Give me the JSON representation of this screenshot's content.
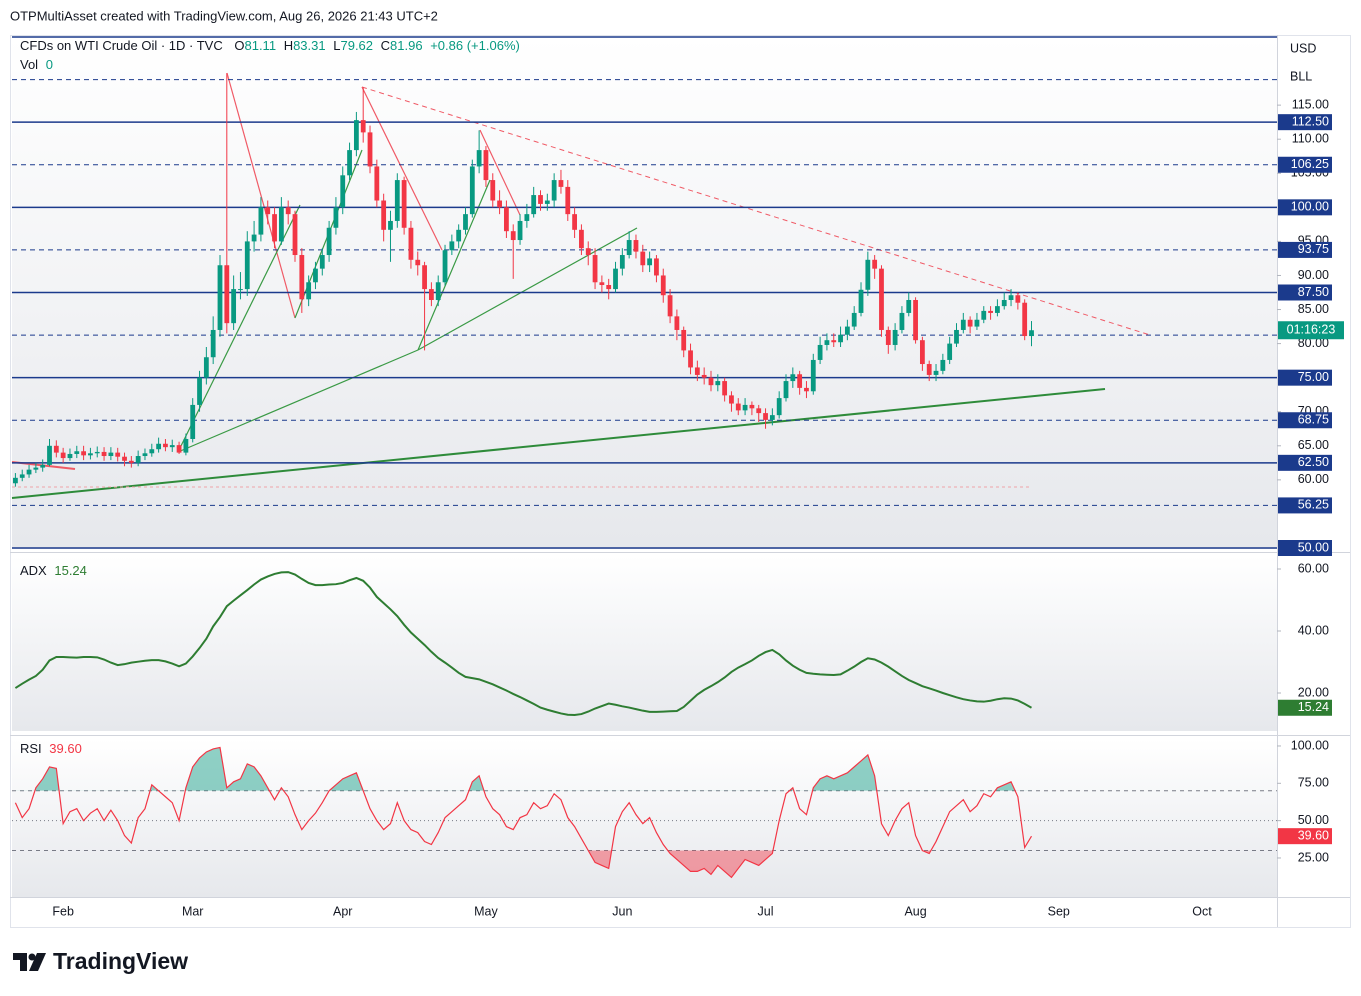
{
  "header": {
    "credit": "OTPMultiAsset created with TradingView.com, Aug 26, 2026 21:43 UTC+2"
  },
  "legend": {
    "symbol": "CFDs on WTI Crude Oil · 1D · TVC",
    "ohlc": [
      {
        "key": "O",
        "value": "81.11"
      },
      {
        "key": "H",
        "value": "83.31"
      },
      {
        "key": "L",
        "value": "79.62"
      },
      {
        "key": "C",
        "value": "81.96"
      }
    ],
    "change": "+0.86 (+1.06%)",
    "volume": {
      "key": "Vol",
      "value": "0"
    }
  },
  "scale_labels": [
    "USD",
    "BLL"
  ],
  "footer": {
    "brand": "TradingView"
  },
  "chart_data": [
    {
      "type": "candlestick",
      "up_color": "#089981",
      "down_color": "#f23645",
      "xlim": [
        -0.5,
        185
      ],
      "xticks": [
        {
          "value": 7,
          "label": "Feb"
        },
        {
          "value": 26,
          "label": "Mar"
        },
        {
          "value": 48,
          "label": "Apr"
        },
        {
          "value": 69,
          "label": "May"
        },
        {
          "value": 89,
          "label": "Jun"
        },
        {
          "value": 110,
          "label": "Jul"
        },
        {
          "value": 132,
          "label": "Aug"
        },
        {
          "value": 153,
          "label": "Sep"
        },
        {
          "value": 174,
          "label": "Oct"
        }
      ],
      "ylim": [
        50,
        125
      ],
      "yticks": [
        {
          "value": 115,
          "label": "115.00"
        },
        {
          "value": 110,
          "label": "110.00"
        },
        {
          "value": 105,
          "label": "105.00"
        },
        {
          "value": 95,
          "label": "95.00"
        },
        {
          "value": 90,
          "label": "90.00"
        },
        {
          "value": 85,
          "label": "85.00"
        },
        {
          "value": 80,
          "label": "80.00"
        },
        {
          "value": 70,
          "label": "70.00"
        },
        {
          "value": 65,
          "label": "65.00"
        },
        {
          "value": 60,
          "label": "60.00"
        }
      ],
      "level_color": "#1b3a8c",
      "levels": [
        {
          "value": 125,
          "style": "solid"
        },
        {
          "value": 118.75,
          "style": "dashed"
        },
        {
          "value": 112.5,
          "style": "solid",
          "label": "112.50"
        },
        {
          "value": 106.25,
          "style": "dashed",
          "label": "106.25"
        },
        {
          "value": 100,
          "style": "solid",
          "label": "100.00"
        },
        {
          "value": 93.75,
          "style": "dashed",
          "label": "93.75"
        },
        {
          "value": 87.5,
          "style": "solid",
          "label": "87.50"
        },
        {
          "value": 81.25,
          "style": "dashed"
        },
        {
          "value": 75,
          "style": "solid",
          "label": "75.00"
        },
        {
          "value": 68.75,
          "style": "dashed",
          "label": "68.75"
        },
        {
          "value": 62.5,
          "style": "solid",
          "label": "62.50"
        },
        {
          "value": 56.25,
          "style": "dashed",
          "label": "56.25"
        },
        {
          "value": 50,
          "style": "solid",
          "label": "50.00"
        }
      ],
      "countdown": "01:16:23",
      "open": [
        59.5,
        60.3,
        60.8,
        61.5,
        61.8,
        62.2,
        65,
        64,
        63.2,
        63.8,
        64.2,
        63.6,
        63.9,
        64.1,
        63.5,
        64,
        63.4,
        62.8,
        62.5,
        63.5,
        63.9,
        64.5,
        65.3,
        64.8,
        65.1,
        64,
        66,
        71,
        75,
        78,
        82,
        91.5,
        83,
        88,
        88,
        95,
        96,
        100,
        99,
        95,
        100,
        99,
        93,
        86.5,
        89,
        91,
        93,
        97,
        100,
        104.7,
        108.4,
        112.8,
        111,
        106,
        101,
        96.7,
        98,
        104,
        97,
        92.3,
        91.5,
        88,
        86.4,
        89,
        93.7,
        95,
        96.7,
        99,
        106,
        108.4,
        104,
        101,
        100,
        96.5,
        95.2,
        98,
        99,
        101.8,
        100.5,
        101,
        104,
        103,
        99,
        96.7,
        94,
        93,
        89,
        88.6,
        88,
        91,
        93,
        95.2,
        93.5,
        91.5,
        92.5,
        90,
        87.1,
        84,
        82,
        79,
        76.5,
        75.4,
        75,
        73.9,
        74.5,
        72.4,
        71.2,
        70.2,
        71,
        70.5,
        69.8,
        68.8,
        69.5,
        72,
        74.5,
        75.5,
        73.5,
        73,
        77.6,
        79.8,
        80.5,
        80.2,
        81.3,
        82.5,
        84.5,
        87.9,
        92.3,
        91,
        82,
        79.8,
        82,
        84.5,
        86.4,
        80.5,
        77,
        75.4,
        76,
        77.6,
        80,
        82,
        83.5,
        82.5,
        83.5,
        84.8,
        84.5,
        85.5,
        86.4,
        87.1,
        86,
        81.11
      ],
      "high": [
        61,
        61.5,
        62.2,
        62.5,
        63,
        66,
        65.8,
        64.7,
        64.6,
        65,
        65,
        64.7,
        64.9,
        64.8,
        64.8,
        64.7,
        64,
        63.5,
        64.3,
        64.6,
        65.3,
        66.2,
        66,
        65.9,
        65.6,
        66.8,
        72,
        76,
        79.5,
        84,
        93,
        119.7,
        90,
        90.5,
        96.5,
        98,
        101.5,
        101,
        100,
        101.5,
        101,
        99.5,
        94,
        90,
        92,
        94,
        98,
        101.5,
        106,
        109.5,
        114,
        117.6,
        112,
        107,
        102,
        99.5,
        105,
        104.5,
        98,
        93.5,
        92,
        89,
        90,
        94.5,
        96,
        97.5,
        100,
        107,
        111.3,
        109,
        105,
        102.5,
        101,
        97.5,
        99,
        100.5,
        103,
        102.5,
        102,
        105,
        105.5,
        104,
        100,
        97.5,
        95,
        94,
        90,
        89.5,
        92,
        94,
        96.5,
        96,
        94.5,
        93.5,
        93,
        91,
        88,
        85,
        82.5,
        80,
        77.5,
        76.5,
        76,
        75.5,
        75,
        73,
        72,
        72,
        71.5,
        71,
        70.5,
        70.5,
        73,
        75.5,
        76.5,
        76,
        74.5,
        78.5,
        81,
        81.5,
        81.5,
        82.5,
        83.5,
        85.5,
        89,
        93.5,
        93,
        91.5,
        82.5,
        83,
        85.5,
        87.5,
        86.8,
        81,
        77.5,
        77,
        78.5,
        81,
        83,
        84.5,
        84,
        84.5,
        85.5,
        85.5,
        86.5,
        87.5,
        88,
        87.5,
        86.5,
        83.31
      ],
      "low": [
        59,
        59.8,
        60.3,
        61,
        61.2,
        62,
        63.3,
        62.5,
        62.8,
        63.2,
        62.9,
        63,
        63.3,
        62.8,
        62.9,
        62.7,
        62,
        61.8,
        62,
        62.9,
        63.4,
        64,
        64.2,
        64.1,
        63.8,
        63.6,
        65.5,
        70,
        74,
        77,
        81,
        81.5,
        82,
        86.5,
        87,
        93.5,
        95,
        97.5,
        94,
        94.5,
        97.5,
        92,
        84.5,
        85.5,
        88,
        90,
        92,
        96,
        99,
        104,
        107.5,
        109.5,
        105,
        100,
        95,
        92,
        97,
        96,
        91,
        90,
        79,
        85.5,
        85.5,
        88.5,
        93,
        94,
        96,
        98.5,
        105,
        103,
        100,
        99,
        95.5,
        89.5,
        94.5,
        97,
        98.5,
        99.5,
        99.5,
        100,
        102,
        98,
        95.5,
        93,
        91.5,
        88,
        87.5,
        86.5,
        87.5,
        90,
        92.5,
        92.5,
        90.5,
        90.5,
        89,
        86,
        83,
        80.5,
        78,
        75.5,
        74.5,
        74,
        73,
        73,
        71.5,
        70,
        69.5,
        69.5,
        69.5,
        68.5,
        67.5,
        68,
        69,
        71.5,
        73.5,
        72.5,
        72,
        72.5,
        77,
        79,
        79.5,
        79.5,
        80.5,
        82,
        84,
        87,
        89.5,
        81,
        78.5,
        79,
        81.5,
        84,
        80,
        76,
        74.5,
        74.5,
        75.5,
        77,
        79.5,
        81.5,
        81.5,
        82,
        83,
        83.5,
        84,
        85,
        85.5,
        85,
        80.5,
        79.62
      ],
      "close": [
        60.3,
        60.8,
        61.5,
        61.8,
        62.2,
        65,
        64,
        63.2,
        63.8,
        64.2,
        63.6,
        63.9,
        64.1,
        63.5,
        64,
        63.4,
        62.8,
        62.5,
        63.5,
        63.9,
        64.5,
        65.3,
        64.8,
        65.1,
        64,
        66,
        71,
        75,
        78,
        82,
        91.5,
        83,
        88,
        88,
        95,
        96,
        100,
        99,
        95,
        100,
        99,
        93,
        86.5,
        89,
        91,
        93,
        97,
        100,
        104.7,
        108.4,
        112.8,
        111,
        106,
        101,
        96.7,
        98,
        104,
        97,
        92.3,
        91.5,
        88,
        86.4,
        89,
        93.7,
        95,
        96.7,
        99,
        106,
        108.4,
        104,
        101,
        100,
        96.5,
        95.2,
        98,
        99,
        101.8,
        100.5,
        101,
        104,
        103,
        99,
        96.7,
        94,
        93,
        89,
        88.6,
        88,
        91,
        93,
        95.2,
        93.5,
        91.5,
        92.5,
        90,
        87.1,
        84,
        82,
        79,
        76.5,
        75.4,
        75,
        73.9,
        74.5,
        72.4,
        71.2,
        70.2,
        71,
        70.5,
        69.8,
        68.8,
        69.5,
        72,
        74.5,
        75.5,
        73.5,
        73,
        77.6,
        79.8,
        80.5,
        80.2,
        81.3,
        82.5,
        84.5,
        87.9,
        92.3,
        91,
        82,
        79.8,
        82,
        84.5,
        86.4,
        80.5,
        77,
        75.4,
        76,
        77.6,
        80,
        82,
        83.5,
        82.5,
        83.5,
        84.8,
        84.5,
        85.5,
        86.4,
        87.1,
        86,
        81.11,
        81.96
      ]
    },
    {
      "type": "line",
      "xlim": [
        -0.5,
        185
      ],
      "ylim": [
        8,
        64
      ],
      "yticks": [
        {
          "value": 60,
          "label": "60.00"
        },
        {
          "value": 40,
          "label": "40.00"
        },
        {
          "value": 20,
          "label": "20.00"
        }
      ],
      "series": [
        {
          "name": "ADX",
          "color": "#2e7d32",
          "values": [
            21.6,
            23,
            24.3,
            25.5,
            27.5,
            30.5,
            31.6,
            31.6,
            31.5,
            31.4,
            31.6,
            31.6,
            31.5,
            30.8,
            29.8,
            29,
            29.3,
            29.8,
            30.1,
            30.4,
            30.6,
            30.6,
            30.2,
            29.5,
            28.6,
            29.5,
            31.8,
            34.5,
            37.5,
            41.5,
            44.5,
            48,
            49.8,
            51.5,
            53.2,
            55,
            56.6,
            57.6,
            58.4,
            58.9,
            59,
            58.2,
            56.8,
            55.5,
            54.8,
            54.8,
            55,
            55.1,
            55.5,
            56.4,
            57.1,
            56.2,
            54,
            51,
            49,
            47,
            44.8,
            42,
            39.5,
            37.5,
            35.5,
            33.3,
            31.3,
            29.8,
            28.2,
            26.5,
            25.2,
            24.8,
            24.4,
            23.6,
            22.8,
            21.8,
            20.8,
            19.7,
            18.7,
            17.6,
            16.5,
            15.3,
            14.6,
            14,
            13.4,
            13,
            12.9,
            13.2,
            14,
            15,
            15.8,
            16.6,
            16.2,
            15.7,
            15.3,
            14.8,
            14.3,
            13.9,
            13.9,
            14,
            14.1,
            14.2,
            15.5,
            17.5,
            19.5,
            21,
            22.2,
            23.5,
            25,
            26.8,
            28.2,
            29.3,
            30.5,
            32,
            33.2,
            33.9,
            32.5,
            30.5,
            28.8,
            27.5,
            26.5,
            26.2,
            26,
            25.9,
            25.8,
            26,
            27.2,
            28.5,
            30,
            31.2,
            30.8,
            29.8,
            28.5,
            27,
            25.5,
            24.2,
            23.2,
            22.2,
            21.5,
            20.8,
            20,
            19.3,
            18.6,
            18,
            17.6,
            17.3,
            17.2,
            17.5,
            18,
            18.3,
            18.2,
            17.6,
            16.5,
            15.24
          ]
        }
      ]
    },
    {
      "type": "line",
      "xlim": [
        -0.5,
        185
      ],
      "ylim": [
        -1,
        104
      ],
      "yticks": [
        {
          "value": 100,
          "label": "100.00"
        },
        {
          "value": 75,
          "label": "75.00"
        },
        {
          "value": 50,
          "label": "50.00"
        },
        {
          "value": 25,
          "label": "25.00"
        }
      ],
      "bands": [
        70,
        50,
        30
      ],
      "overbought_color": "rgba(8,153,129,0.45)",
      "oversold_color": "rgba(242,54,69,0.45)",
      "last_label": "39.60",
      "series": [
        {
          "name": "RSI",
          "color": "#f23645",
          "values": [
            62,
            52,
            58,
            72,
            78,
            86,
            85,
            48,
            56,
            58,
            50,
            55,
            58,
            50,
            57,
            50,
            40,
            35,
            52,
            58,
            74,
            70,
            66,
            62,
            50,
            72,
            86,
            92,
            96,
            98,
            99,
            72,
            76,
            78,
            88,
            86,
            80,
            72,
            64,
            72,
            66,
            54,
            44,
            50,
            55,
            62,
            70,
            74,
            78,
            80,
            82,
            70,
            58,
            50,
            44,
            48,
            62,
            50,
            44,
            42,
            36,
            34,
            42,
            52,
            56,
            60,
            64,
            76,
            80,
            66,
            58,
            54,
            46,
            44,
            52,
            54,
            62,
            58,
            60,
            68,
            64,
            52,
            46,
            38,
            30,
            22,
            20,
            18,
            46,
            56,
            62,
            54,
            48,
            52,
            42,
            34,
            28,
            24,
            20,
            16,
            16,
            18,
            14,
            20,
            16,
            12,
            18,
            24,
            22,
            20,
            24,
            28,
            50,
            68,
            72,
            58,
            54,
            72,
            78,
            80,
            78,
            80,
            82,
            86,
            90,
            94,
            80,
            48,
            40,
            50,
            58,
            62,
            40,
            30,
            28,
            36,
            46,
            56,
            60,
            64,
            56,
            60,
            68,
            66,
            72,
            74,
            76,
            66,
            32,
            39.6
          ]
        }
      ]
    }
  ]
}
